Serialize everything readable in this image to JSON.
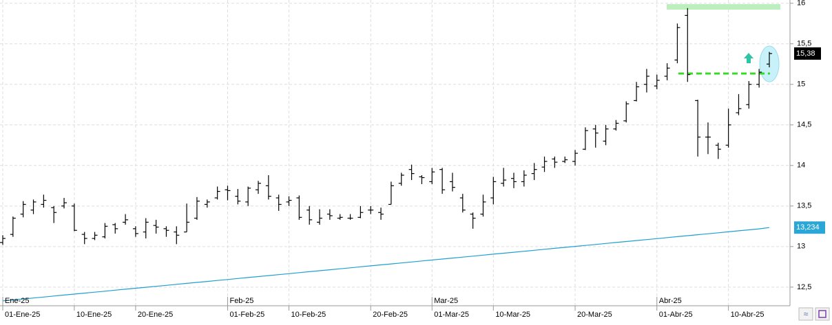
{
  "chart_data": {
    "type": "ohlc",
    "categories": [
      "01-Ene-25",
      null,
      null,
      null,
      null,
      null,
      null,
      "10-Ene-25",
      null,
      null,
      null,
      null,
      null,
      "20-Ene-25",
      null,
      null,
      null,
      null,
      null,
      null,
      null,
      null,
      "01-Feb-25",
      null,
      null,
      null,
      null,
      null,
      "10-Feb-25",
      null,
      null,
      null,
      null,
      null,
      null,
      null,
      "20-Feb-25",
      null,
      null,
      null,
      null,
      null,
      "01-Mar-25",
      null,
      null,
      null,
      null,
      null,
      "10-Mar-25",
      null,
      null,
      null,
      null,
      null,
      null,
      null,
      "20-Mar-25",
      null,
      null,
      null,
      null,
      null,
      null,
      null,
      "01-Abr-25",
      null,
      null,
      null,
      null,
      null,
      null,
      "10-Abr-25",
      null,
      null,
      null,
      null
    ],
    "month_labels": [
      "Ene-25",
      null,
      null,
      null,
      null,
      null,
      null,
      null,
      null,
      null,
      null,
      null,
      null,
      null,
      null,
      null,
      null,
      null,
      null,
      null,
      null,
      null,
      "Feb-25",
      null,
      null,
      null,
      null,
      null,
      null,
      null,
      null,
      null,
      null,
      null,
      null,
      null,
      null,
      null,
      null,
      null,
      null,
      null,
      "Mar-25",
      null,
      null,
      null,
      null,
      null,
      null,
      null,
      null,
      null,
      null,
      null,
      null,
      null,
      null,
      null,
      null,
      null,
      null,
      null,
      null,
      null,
      "Abr-25",
      null,
      null,
      null,
      null,
      null,
      null,
      null,
      null,
      null,
      null,
      null
    ],
    "open": [
      13.05,
      13.15,
      13.4,
      13.45,
      13.52,
      13.48,
      13.5,
      13.5,
      13.15,
      13.1,
      13.12,
      13.27,
      13.3,
      13.22,
      13.18,
      13.26,
      13.22,
      13.18,
      13.18,
      13.35,
      13.52,
      13.6,
      13.7,
      13.62,
      13.55,
      13.7,
      13.75,
      13.6,
      13.55,
      13.6,
      13.45,
      13.3,
      13.4,
      13.35,
      13.35,
      13.36,
      13.45,
      13.42,
      13.52,
      13.78,
      13.95,
      13.86,
      13.8,
      13.95,
      13.8,
      13.6,
      13.4,
      13.4,
      13.6,
      13.78,
      13.84,
      13.8,
      13.9,
      13.98,
      14.08,
      14.05,
      14.05,
      14.2,
      14.45,
      14.3,
      14.45,
      14.55,
      14.8,
      15.0,
      14.98,
      15.1,
      15.3,
      15.85,
      14.8,
      14.35,
      14.25,
      14.25,
      14.65,
      14.75,
      15.0,
      15.25
    ],
    "high": [
      13.14,
      13.37,
      13.56,
      13.58,
      13.64,
      13.5,
      13.6,
      13.53,
      13.18,
      13.18,
      13.29,
      13.29,
      13.4,
      13.25,
      13.35,
      13.33,
      13.25,
      13.25,
      13.53,
      13.61,
      13.58,
      13.74,
      13.75,
      13.71,
      13.74,
      13.81,
      13.88,
      13.64,
      13.62,
      13.63,
      13.5,
      13.46,
      13.46,
      13.4,
      13.4,
      13.5,
      13.5,
      13.48,
      13.8,
      13.91,
      14.01,
      13.88,
      13.97,
      13.97,
      13.91,
      13.65,
      13.42,
      13.64,
      13.86,
      13.97,
      13.91,
      13.94,
      14.03,
      14.11,
      14.11,
      14.11,
      14.19,
      14.47,
      14.5,
      14.5,
      14.56,
      14.79,
      15.03,
      15.19,
      15.12,
      15.26,
      15.75,
      15.94,
      14.81,
      14.53,
      14.28,
      14.7,
      14.88,
      15.04,
      15.19,
      15.4
    ],
    "low": [
      13.02,
      13.12,
      13.36,
      13.4,
      13.48,
      13.29,
      13.47,
      13.19,
      13.03,
      13.08,
      13.1,
      13.16,
      13.27,
      13.12,
      13.1,
      13.16,
      13.12,
      13.03,
      13.18,
      13.33,
      13.48,
      13.58,
      13.57,
      13.52,
      13.5,
      13.65,
      13.58,
      13.44,
      13.5,
      13.33,
      13.27,
      13.27,
      13.33,
      13.33,
      13.33,
      13.35,
      13.4,
      13.33,
      13.52,
      13.75,
      13.82,
      13.77,
      13.77,
      13.65,
      13.68,
      13.42,
      13.22,
      13.37,
      13.52,
      13.74,
      13.72,
      13.74,
      13.82,
      13.92,
      13.97,
      14.03,
      14.0,
      14.19,
      14.22,
      14.25,
      14.43,
      14.53,
      14.79,
      14.9,
      14.94,
      15.05,
      15.26,
      15.03,
      14.11,
      14.14,
      14.08,
      14.22,
      14.62,
      14.7,
      14.96,
      15.21
    ],
    "close": [
      13.1,
      13.35,
      13.52,
      13.55,
      13.57,
      13.42,
      13.54,
      13.2,
      13.1,
      13.14,
      13.25,
      13.22,
      13.33,
      13.16,
      13.3,
      13.24,
      13.2,
      13.14,
      13.3,
      13.56,
      13.55,
      13.68,
      13.69,
      13.56,
      13.72,
      13.78,
      13.62,
      13.52,
      13.57,
      13.36,
      13.33,
      13.35,
      13.38,
      13.36,
      13.35,
      13.42,
      13.45,
      13.4,
      13.75,
      13.88,
      13.9,
      13.85,
      13.92,
      13.7,
      13.73,
      13.45,
      13.35,
      13.55,
      13.8,
      13.82,
      13.8,
      13.88,
      13.95,
      14.05,
      14.04,
      14.07,
      14.15,
      14.43,
      14.4,
      14.45,
      14.52,
      14.76,
      14.97,
      15.1,
      15.05,
      15.2,
      15.7,
      15.12,
      14.35,
      14.35,
      14.2,
      14.5,
      14.7,
      15.0,
      15.15,
      15.38
    ],
    "color": "#000000",
    "moving_average": {
      "color": "#1e9fd0",
      "values": [
        12.33,
        12.342,
        12.354,
        12.366,
        12.378,
        12.39,
        12.402,
        12.414,
        12.426,
        12.438,
        12.45,
        12.462,
        12.474,
        12.486,
        12.498,
        12.51,
        12.522,
        12.534,
        12.546,
        12.558,
        12.57,
        12.582,
        12.594,
        12.606,
        12.618,
        12.63,
        12.642,
        12.654,
        12.666,
        12.678,
        12.69,
        12.702,
        12.714,
        12.726,
        12.738,
        12.75,
        12.762,
        12.774,
        12.786,
        12.798,
        12.81,
        12.822,
        12.834,
        12.846,
        12.858,
        12.87,
        12.882,
        12.894,
        12.906,
        12.918,
        12.93,
        12.942,
        12.954,
        12.966,
        12.978,
        12.99,
        13.002,
        13.014,
        13.026,
        13.038,
        13.05,
        13.062,
        13.074,
        13.086,
        13.098,
        13.11,
        13.122,
        13.134,
        13.146,
        13.158,
        13.17,
        13.182,
        13.194,
        13.206,
        13.218,
        13.234
      ]
    },
    "price_labels": [
      {
        "value": 15.38,
        "label": "15,38",
        "color": "#000000"
      },
      {
        "value": 13.234,
        "label": "13,234",
        "color": "#2aa7d6"
      }
    ],
    "ylim": [
      12.27,
      16.04
    ],
    "yticks": [
      16,
      {
        "value": 15.5,
        "label": "15,5"
      },
      15,
      {
        "value": 14.5,
        "label": "14,5"
      },
      14,
      {
        "value": 13.5,
        "label": "13,5"
      },
      13,
      {
        "value": 12.5,
        "label": "12,5"
      }
    ],
    "grid": true
  }
}
